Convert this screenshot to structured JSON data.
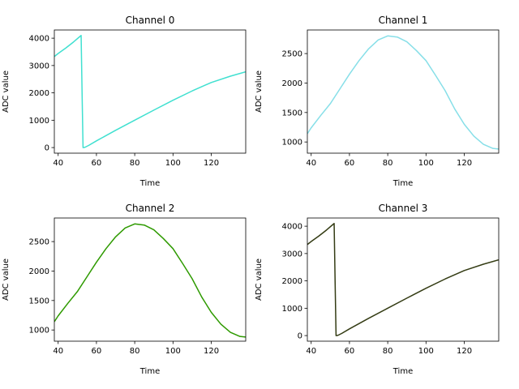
{
  "chart_data": [
    {
      "type": "line",
      "title": "Channel 0",
      "xlabel": "Time",
      "ylabel": "ADC value",
      "xlim": [
        38,
        138
      ],
      "ylim": [
        -205,
        4300
      ],
      "xticks": [
        40,
        60,
        80,
        100,
        120
      ],
      "yticks": [
        0,
        1000,
        2000,
        3000,
        4000
      ],
      "color": "#40e0d0",
      "grid": false,
      "x": [
        38,
        40,
        44,
        48,
        52,
        52.5,
        53,
        54,
        56,
        60,
        70,
        80,
        90,
        100,
        110,
        120,
        130,
        138
      ],
      "y": [
        3330,
        3440,
        3640,
        3860,
        4100,
        2000,
        0,
        10,
        80,
        245,
        630,
        1000,
        1370,
        1730,
        2070,
        2380,
        2610,
        2770
      ]
    },
    {
      "type": "line",
      "title": "Channel 1",
      "xlabel": "Time",
      "ylabel": "ADC value",
      "xlim": [
        38,
        138
      ],
      "ylim": [
        810,
        2900
      ],
      "xticks": [
        40,
        60,
        80,
        100,
        120
      ],
      "yticks": [
        1000,
        1500,
        2000,
        2500
      ],
      "color": "#87dfe8",
      "grid": false,
      "x": [
        38,
        40,
        45,
        50,
        55,
        60,
        65,
        70,
        75,
        80,
        85,
        90,
        95,
        100,
        105,
        110,
        115,
        120,
        125,
        130,
        135,
        138
      ],
      "y": [
        1140,
        1240,
        1450,
        1650,
        1900,
        2150,
        2380,
        2580,
        2730,
        2800,
        2780,
        2700,
        2550,
        2380,
        2130,
        1870,
        1560,
        1300,
        1100,
        960,
        890,
        880
      ]
    },
    {
      "type": "line",
      "title": "Channel 2",
      "xlabel": "Time",
      "ylabel": "ADC value",
      "xlim": [
        38,
        138
      ],
      "ylim": [
        810,
        2900
      ],
      "xticks": [
        40,
        60,
        80,
        100,
        120
      ],
      "yticks": [
        1000,
        1500,
        2000,
        2500
      ],
      "color": "#2e9a00",
      "grid": false,
      "x": [
        38,
        40,
        45,
        50,
        55,
        60,
        65,
        70,
        75,
        80,
        85,
        90,
        95,
        100,
        105,
        110,
        115,
        120,
        125,
        130,
        135,
        138
      ],
      "y": [
        1140,
        1240,
        1450,
        1650,
        1900,
        2150,
        2380,
        2580,
        2730,
        2800,
        2780,
        2700,
        2550,
        2380,
        2130,
        1870,
        1560,
        1300,
        1100,
        960,
        890,
        880
      ]
    },
    {
      "type": "line",
      "title": "Channel 3",
      "xlabel": "Time",
      "ylabel": "ADC value",
      "xlim": [
        38,
        138
      ],
      "ylim": [
        -205,
        4300
      ],
      "xticks": [
        40,
        60,
        80,
        100,
        120
      ],
      "yticks": [
        0,
        1000,
        2000,
        3000,
        4000
      ],
      "color": "#343c14",
      "grid": false,
      "x": [
        38,
        40,
        44,
        48,
        52,
        52.5,
        53,
        54,
        56,
        60,
        70,
        80,
        90,
        100,
        110,
        120,
        130,
        138
      ],
      "y": [
        3330,
        3440,
        3640,
        3860,
        4100,
        2000,
        0,
        10,
        80,
        245,
        630,
        1000,
        1370,
        1730,
        2070,
        2380,
        2610,
        2770
      ]
    }
  ]
}
